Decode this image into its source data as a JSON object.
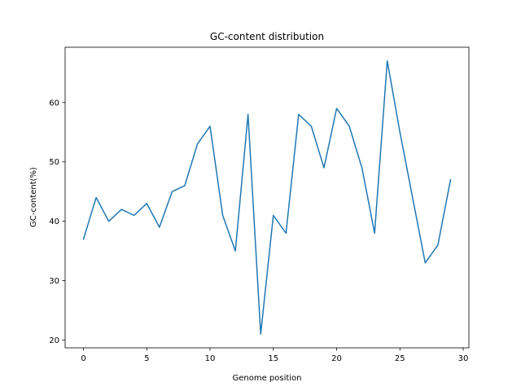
{
  "chart_data": {
    "type": "line",
    "title": "GC-content distribution",
    "xlabel": "Genome position",
    "ylabel": "GC-content(%)",
    "xlim": [
      -1.45,
      30.45
    ],
    "ylim": [
      18.7,
      69.3
    ],
    "xticks": [
      0,
      5,
      10,
      15,
      20,
      25,
      30
    ],
    "yticks": [
      20,
      30,
      40,
      50,
      60
    ],
    "grid": false,
    "series": [
      {
        "color": "#1f77b4",
        "x": [
          0,
          1,
          2,
          3,
          4,
          5,
          6,
          7,
          8,
          9,
          10,
          11,
          12,
          13,
          14,
          15,
          16,
          17,
          18,
          19,
          20,
          21,
          22,
          23,
          24,
          25,
          26,
          27,
          28,
          29
        ],
        "y": [
          37,
          44,
          40,
          42,
          41,
          43,
          39,
          45,
          46,
          53,
          56,
          41,
          35,
          58,
          21,
          41,
          38,
          58,
          56,
          49,
          59,
          56,
          49,
          38,
          67,
          55,
          44,
          33,
          36,
          47
        ]
      }
    ]
  }
}
